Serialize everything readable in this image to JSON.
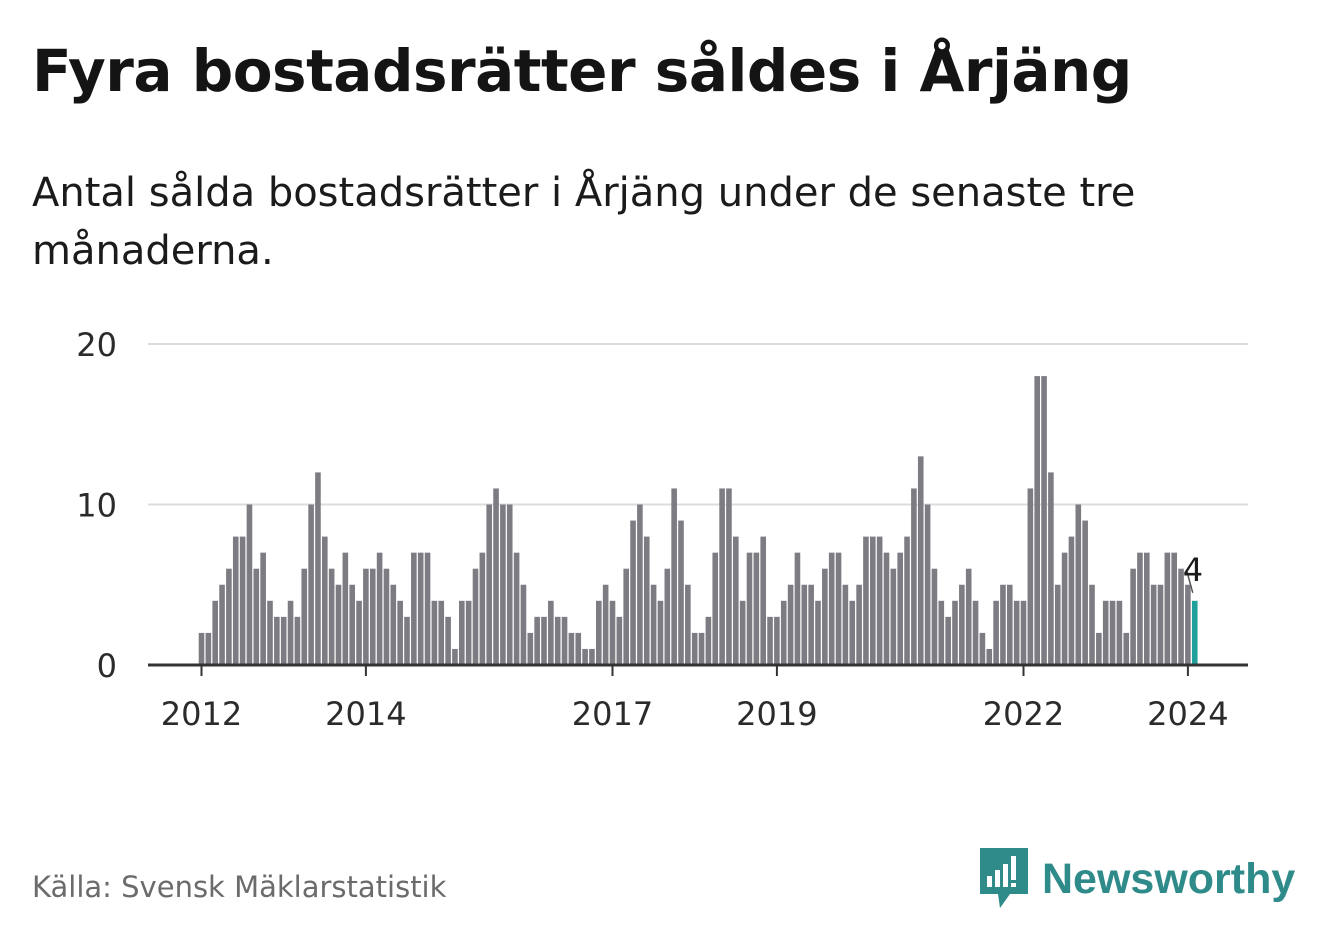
{
  "title": "Fyra bostadsrätter såldes i Årjäng",
  "subtitle": "Antal sålda bostadsrätter i Årjäng under de senaste tre månaderna.",
  "source": "Källa: Svensk Mäklarstatistik",
  "brand": {
    "name": "Newsworthy",
    "icon": "newsworthy-logo-icon",
    "color": "#2f8a8a"
  },
  "colors": {
    "bar": "#7d7c82",
    "highlight": "#20a09a",
    "grid": "#dcdcdc",
    "axis": "#333333",
    "text": "#2b2b2b"
  },
  "chart_data": {
    "type": "bar",
    "title": "Fyra bostadsrätter såldes i Årjäng",
    "xlabel": "",
    "ylabel": "",
    "ylim": [
      0,
      20
    ],
    "yticks": [
      0,
      10,
      20
    ],
    "grid": true,
    "legend": "none",
    "x_ticks": [
      {
        "label": "2012",
        "index": 0
      },
      {
        "label": "2014",
        "index": 24
      },
      {
        "label": "2017",
        "index": 60
      },
      {
        "label": "2019",
        "index": 84
      },
      {
        "label": "2022",
        "index": 120
      },
      {
        "label": "2024",
        "index": 144
      }
    ],
    "start": "2012-01",
    "end": "2024-02",
    "highlight_index": 145,
    "annotation": {
      "label": "4",
      "index": 145,
      "value": 4
    },
    "values": [
      2,
      2,
      4,
      5,
      6,
      8,
      8,
      10,
      6,
      7,
      4,
      3,
      3,
      4,
      3,
      6,
      10,
      12,
      8,
      6,
      5,
      7,
      5,
      4,
      6,
      6,
      7,
      6,
      5,
      4,
      3,
      7,
      7,
      7,
      4,
      4,
      3,
      1,
      4,
      4,
      6,
      7,
      10,
      11,
      10,
      10,
      7,
      5,
      2,
      3,
      3,
      4,
      3,
      3,
      2,
      2,
      1,
      1,
      4,
      5,
      4,
      3,
      6,
      9,
      10,
      8,
      5,
      4,
      6,
      11,
      9,
      5,
      2,
      2,
      3,
      7,
      11,
      11,
      8,
      4,
      7,
      7,
      8,
      3,
      3,
      4,
      5,
      7,
      5,
      5,
      4,
      6,
      7,
      7,
      5,
      4,
      5,
      8,
      8,
      8,
      7,
      6,
      7,
      8,
      11,
      13,
      10,
      6,
      4,
      3,
      4,
      5,
      6,
      4,
      2,
      1,
      4,
      5,
      5,
      4,
      4,
      11,
      18,
      18,
      12,
      5,
      7,
      8,
      10,
      9,
      5,
      2,
      4,
      4,
      4,
      2,
      6,
      7,
      7,
      5,
      5,
      7,
      7,
      6,
      5,
      4
    ]
  }
}
